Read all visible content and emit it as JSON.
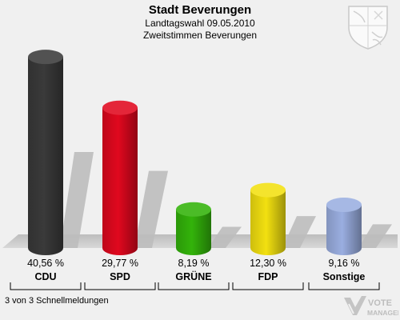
{
  "header": {
    "title": "Stadt Beverungen",
    "subtitle": "Landtagswahl 09.05.2010",
    "subtitle2": "Zweitstimmen Beverungen"
  },
  "footer": {
    "status": "3 von 3 Schnellmeldungen"
  },
  "logo": {
    "line1": "VOTE",
    "line2": "MANAGER"
  },
  "crest_icon": "coat-of-arms-icon",
  "chart_data": {
    "type": "bar",
    "categories": [
      "CDU",
      "SPD",
      "GRÜNE",
      "FDP",
      "Sonstige"
    ],
    "values": [
      40.56,
      29.77,
      8.19,
      12.3,
      9.16
    ],
    "value_labels": [
      "40,56 %",
      "29,77 %",
      "8,19 %",
      "12,30 %",
      "9,16 %"
    ],
    "colors": [
      "#3a3a3a",
      "#e0081e",
      "#33b30a",
      "#f2e010",
      "#9aaee0"
    ],
    "ylim": [
      0,
      45
    ],
    "grid": false,
    "legend": "none"
  }
}
